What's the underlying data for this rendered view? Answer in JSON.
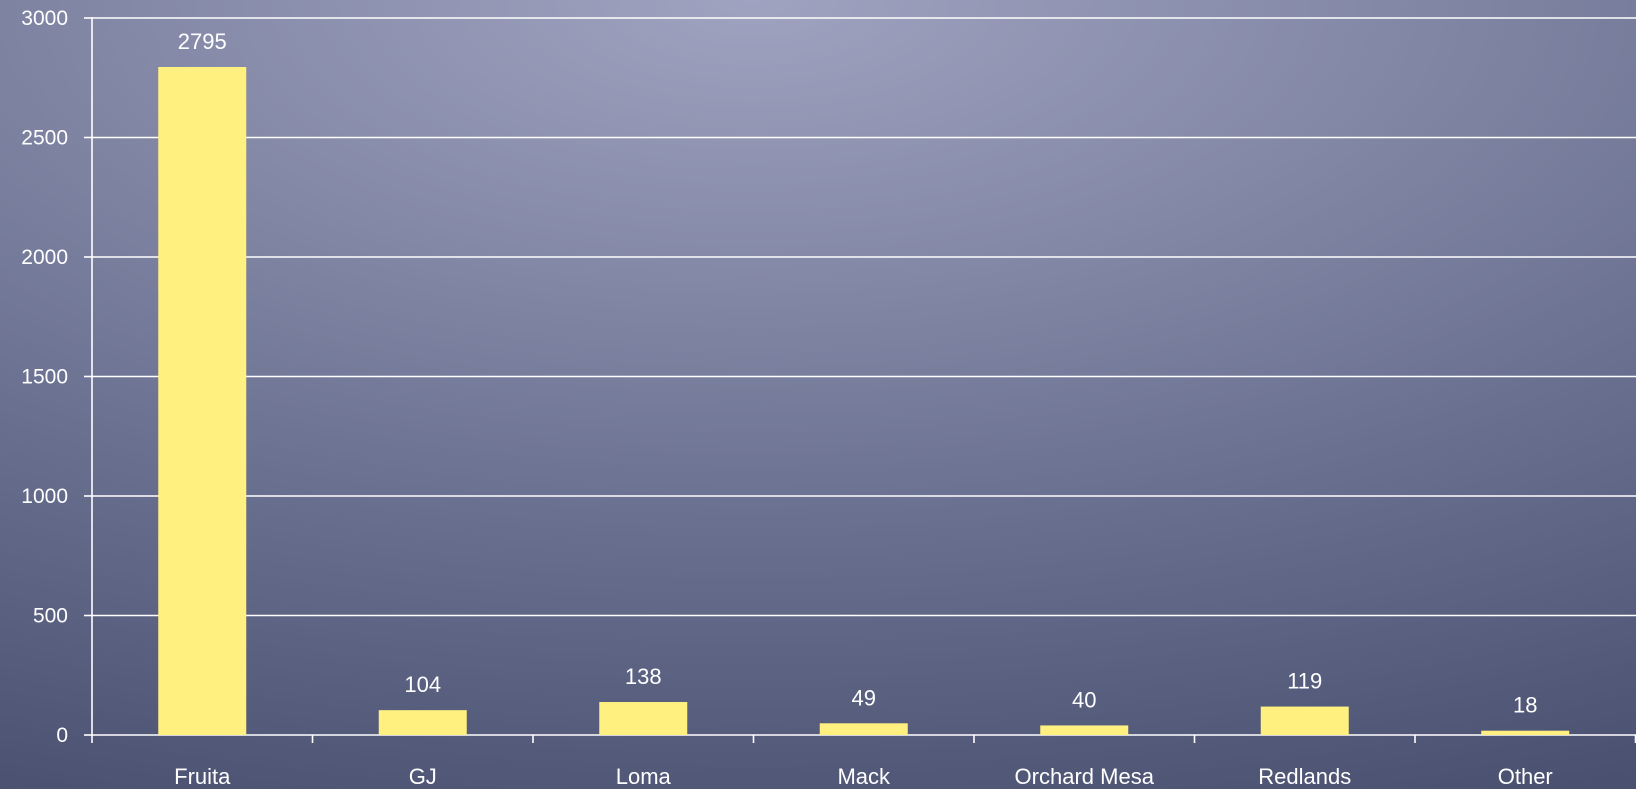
{
  "chart_data": {
    "type": "bar",
    "categories": [
      "Fruita",
      "GJ",
      "Loma",
      "Mack",
      "Orchard Mesa",
      "Redlands",
      "Other"
    ],
    "values": [
      2795,
      104,
      138,
      49,
      40,
      119,
      18
    ],
    "title": "",
    "xlabel": "",
    "ylabel": "",
    "ylim": [
      0,
      3000
    ],
    "yticks": [
      0,
      500,
      1000,
      1500,
      2000,
      2500,
      3000
    ],
    "grid": true,
    "legend": "none",
    "data_labels": true,
    "bar_color": "#fff080",
    "grid_color": "#ffffff",
    "text_color": "#ffffff"
  }
}
